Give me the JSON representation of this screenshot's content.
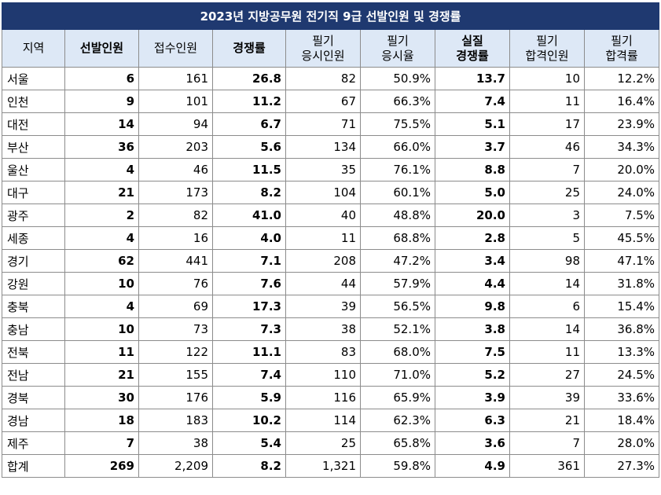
{
  "title": "2023년 지방공무원 전기직 9급 선발인원 및 경쟁률",
  "headers": [
    {
      "l1": "지역",
      "l2": "",
      "bold": false
    },
    {
      "l1": "선발인원",
      "l2": "",
      "bold": true
    },
    {
      "l1": "접수인원",
      "l2": "",
      "bold": false
    },
    {
      "l1": "경쟁률",
      "l2": "",
      "bold": true
    },
    {
      "l1": "필기",
      "l2": "응시인원",
      "bold": false
    },
    {
      "l1": "필기",
      "l2": "응시율",
      "bold": false
    },
    {
      "l1": "실질",
      "l2": "경쟁률",
      "bold": true
    },
    {
      "l1": "필기",
      "l2": "합격인원",
      "bold": false
    },
    {
      "l1": "필기",
      "l2": "합격률",
      "bold": false
    }
  ],
  "rows": [
    [
      "서울",
      "6",
      "161",
      "26.8",
      "82",
      "50.9%",
      "13.7",
      "10",
      "12.2%"
    ],
    [
      "인천",
      "9",
      "101",
      "11.2",
      "67",
      "66.3%",
      "7.4",
      "11",
      "16.4%"
    ],
    [
      "대전",
      "14",
      "94",
      "6.7",
      "71",
      "75.5%",
      "5.1",
      "17",
      "23.9%"
    ],
    [
      "부산",
      "36",
      "203",
      "5.6",
      "134",
      "66.0%",
      "3.7",
      "46",
      "34.3%"
    ],
    [
      "울산",
      "4",
      "46",
      "11.5",
      "35",
      "76.1%",
      "8.8",
      "7",
      "20.0%"
    ],
    [
      "대구",
      "21",
      "173",
      "8.2",
      "104",
      "60.1%",
      "5.0",
      "25",
      "24.0%"
    ],
    [
      "광주",
      "2",
      "82",
      "41.0",
      "40",
      "48.8%",
      "20.0",
      "3",
      "7.5%"
    ],
    [
      "세종",
      "4",
      "16",
      "4.0",
      "11",
      "68.8%",
      "2.8",
      "5",
      "45.5%"
    ],
    [
      "경기",
      "62",
      "441",
      "7.1",
      "208",
      "47.2%",
      "3.4",
      "98",
      "47.1%"
    ],
    [
      "강원",
      "10",
      "76",
      "7.6",
      "44",
      "57.9%",
      "4.4",
      "14",
      "31.8%"
    ],
    [
      "충북",
      "4",
      "69",
      "17.3",
      "39",
      "56.5%",
      "9.8",
      "6",
      "15.4%"
    ],
    [
      "충남",
      "10",
      "73",
      "7.3",
      "38",
      "52.1%",
      "3.8",
      "14",
      "36.8%"
    ],
    [
      "전북",
      "11",
      "122",
      "11.1",
      "83",
      "68.0%",
      "7.5",
      "11",
      "13.3%"
    ],
    [
      "전남",
      "21",
      "155",
      "7.4",
      "110",
      "71.0%",
      "5.2",
      "27",
      "24.5%"
    ],
    [
      "경북",
      "30",
      "176",
      "5.9",
      "116",
      "65.9%",
      "3.9",
      "39",
      "33.6%"
    ],
    [
      "경남",
      "18",
      "183",
      "10.2",
      "114",
      "62.3%",
      "6.3",
      "21",
      "18.4%"
    ],
    [
      "제주",
      "7",
      "38",
      "5.4",
      "25",
      "65.8%",
      "3.6",
      "7",
      "28.0%"
    ],
    [
      "합계",
      "269",
      "2,209",
      "8.2",
      "1,321",
      "59.8%",
      "4.9",
      "361",
      "27.3%"
    ]
  ],
  "colors": {
    "title_bg": "#1f3970",
    "header_bg": "#dde8f6",
    "border": "#8c8c8c"
  }
}
